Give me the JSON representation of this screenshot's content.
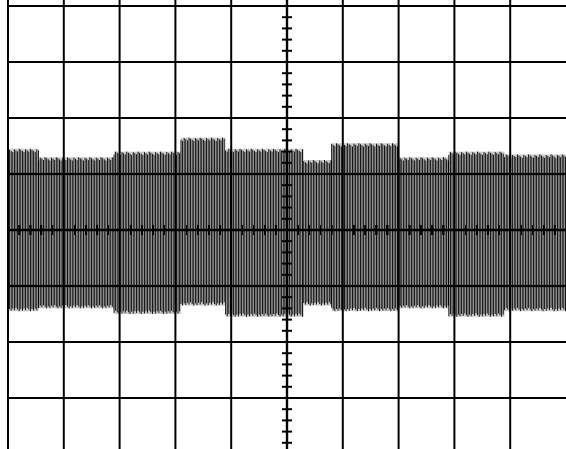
{
  "graticule": {
    "line_color": "#000000",
    "background_color": "#ffffff",
    "columns": 10,
    "rows": 8,
    "minor_ticks_per_division": 5
  },
  "trace": {
    "color": "#000000",
    "type": "dense vertical burst envelope",
    "envelope_segments": [
      {
        "start_div": 0.0,
        "end_div": 0.55,
        "top_div": 2.55,
        "bottom_div": 5.45
      },
      {
        "start_div": 0.55,
        "end_div": 1.9,
        "top_div": 2.7,
        "bottom_div": 5.4
      },
      {
        "start_div": 1.9,
        "end_div": 3.1,
        "top_div": 2.6,
        "bottom_div": 5.5
      },
      {
        "start_div": 3.1,
        "end_div": 3.9,
        "top_div": 2.35,
        "bottom_div": 5.35
      },
      {
        "start_div": 3.9,
        "end_div": 5.3,
        "top_div": 2.55,
        "bottom_div": 5.55
      },
      {
        "start_div": 5.3,
        "end_div": 5.8,
        "top_div": 2.75,
        "bottom_div": 5.35
      },
      {
        "start_div": 5.8,
        "end_div": 7.0,
        "top_div": 2.45,
        "bottom_div": 5.45
      },
      {
        "start_div": 7.0,
        "end_div": 7.9,
        "top_div": 2.7,
        "bottom_div": 5.4
      },
      {
        "start_div": 7.9,
        "end_div": 8.9,
        "top_div": 2.6,
        "bottom_div": 5.55
      },
      {
        "start_div": 8.9,
        "end_div": 10.0,
        "top_div": 2.65,
        "bottom_div": 5.45
      }
    ]
  }
}
